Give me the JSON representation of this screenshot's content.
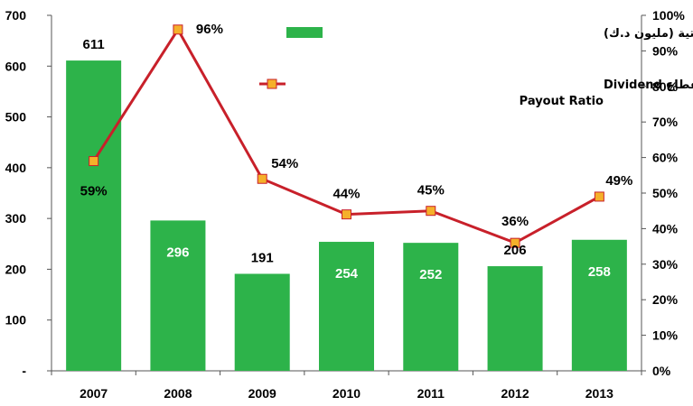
{
  "chart_data": {
    "type": "bar",
    "categories": [
      "2007",
      "2008",
      "2009",
      "2010",
      "2011",
      "2012",
      "2013"
    ],
    "series": [
      {
        "name": "التوزيعات النقدية الاجمالية لقطاع البنوك الكويتية (مليون د.ك)",
        "type": "bar",
        "axis": "left",
        "color": "#2db34a",
        "values": [
          611,
          296,
          191,
          254,
          252,
          206,
          258
        ],
        "labels": [
          "611",
          "296",
          "191",
          "254",
          "252",
          "206",
          "258"
        ]
      },
      {
        "name": "نسبة التوزيعات النقدية الى صافي الارباح للقطاع Dividend Payout Ratio",
        "name_lines": [
          "نسبة التوزيعات النقدية الى صافي الارباح للقطاع  Dividend",
          "Payout Ratio"
        ],
        "type": "line",
        "axis": "right",
        "color": "#c8202a",
        "marker_color": "#f5b02a",
        "values": [
          59,
          96,
          54,
          44,
          45,
          36,
          49
        ],
        "labels": [
          "59%",
          "96%",
          "54%",
          "44%",
          "45%",
          "36%",
          "49%"
        ]
      }
    ],
    "y_left": {
      "min": 0,
      "max": 700,
      "ticks": [
        0,
        100,
        200,
        300,
        400,
        500,
        600,
        700
      ],
      "tick_labels": [
        "-",
        "100",
        "200",
        "300",
        "400",
        "500",
        "600",
        "700"
      ]
    },
    "y_right": {
      "min": 0,
      "max": 100,
      "ticks": [
        0,
        10,
        20,
        30,
        40,
        50,
        60,
        70,
        80,
        90,
        100
      ],
      "tick_labels": [
        "0%",
        "10%",
        "20%",
        "30%",
        "40%",
        "50%",
        "60%",
        "70%",
        "80%",
        "90%",
        "100%"
      ]
    },
    "title": "",
    "xlabel": "",
    "ylabel": "",
    "grid": false,
    "legend_position": "top-right"
  }
}
